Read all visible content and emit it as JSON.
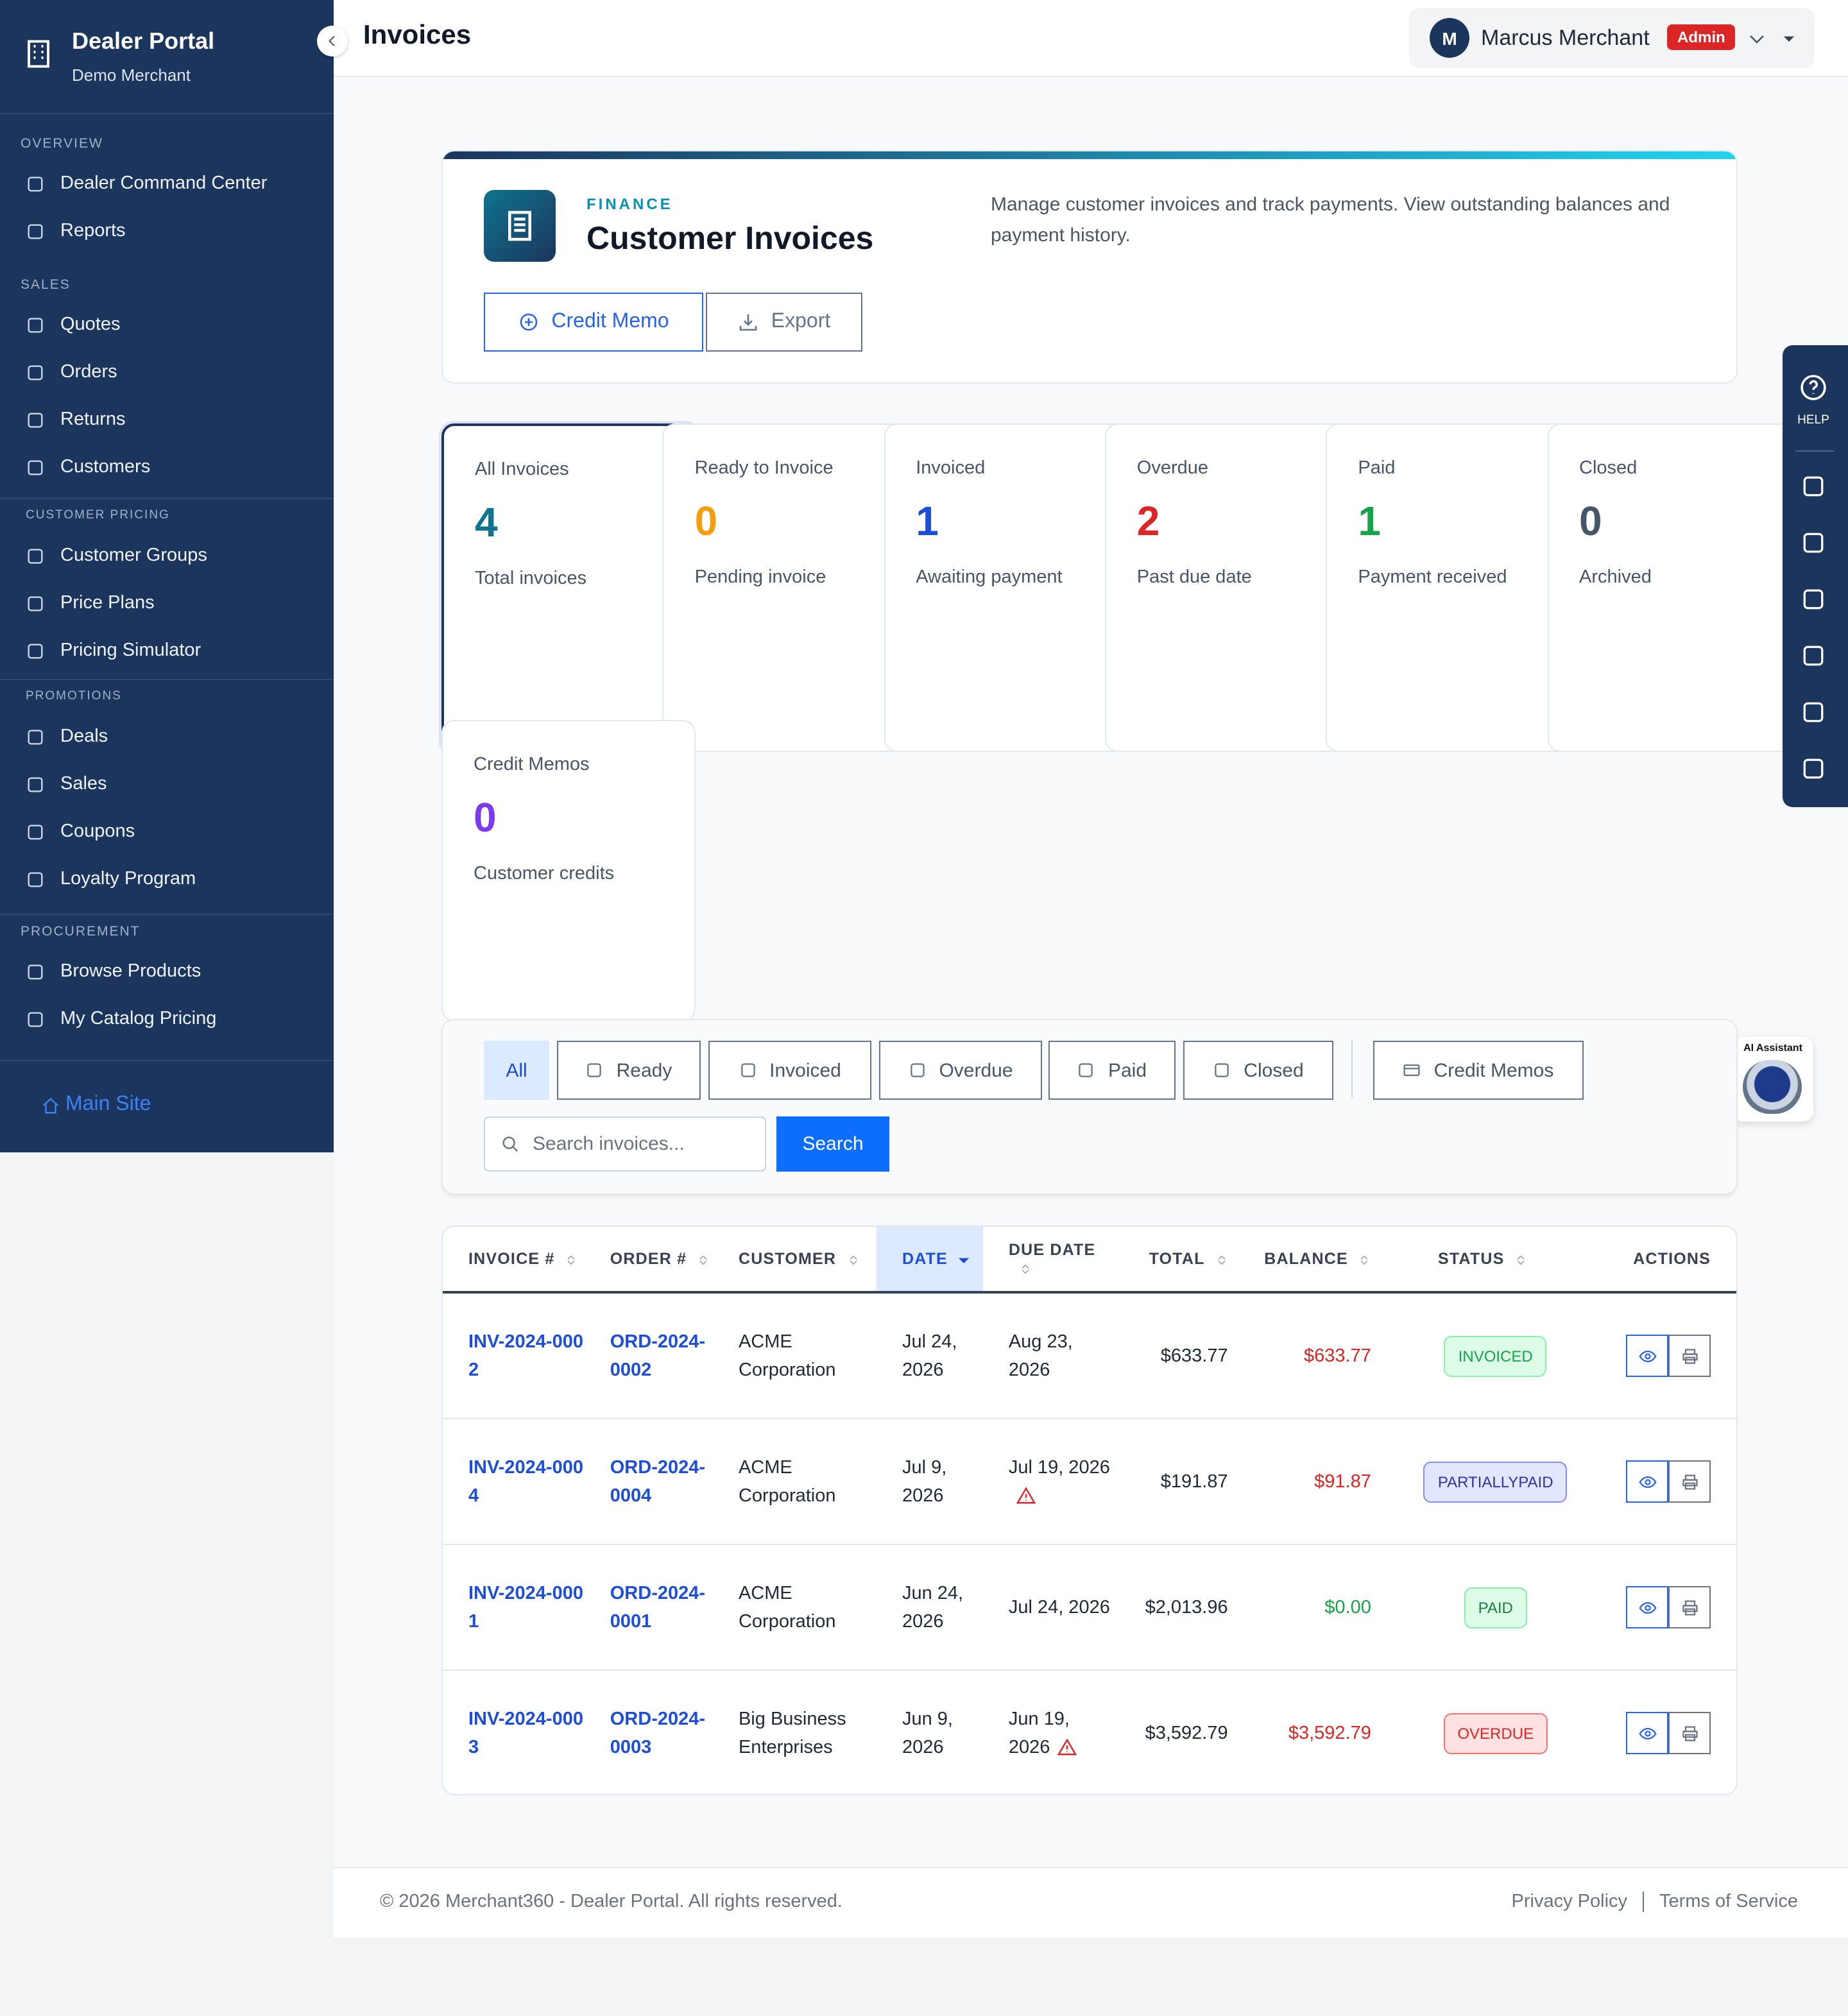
{
  "sidebar": {
    "brand": "Dealer Portal",
    "merchant": "Demo Merchant",
    "sections": [
      {
        "title": "OVERVIEW",
        "items": [
          "Dealer Command Center",
          "Reports"
        ]
      },
      {
        "title": "SALES",
        "items": [
          "Quotes",
          "Orders",
          "Returns",
          "Customers"
        ]
      },
      {
        "title": "CUSTOMER PRICING",
        "items": [
          "Customer Groups",
          "Price Plans",
          "Pricing Simulator"
        ]
      },
      {
        "title": "PROMOTIONS",
        "items": [
          "Deals",
          "Sales",
          "Coupons",
          "Loyalty Program"
        ]
      },
      {
        "title": "PROCUREMENT",
        "items": [
          "Browse Products",
          "My Catalog Pricing"
        ]
      }
    ],
    "footer_link": "Main Site"
  },
  "header": {
    "title": "Invoices",
    "user": {
      "initial": "M",
      "name": "Marcus Merchant",
      "role": "Admin"
    }
  },
  "hero": {
    "eyebrow": "FINANCE",
    "title": "Customer Invoices",
    "description": "Manage customer invoices and track payments. View outstanding balances and payment history.",
    "buttons": [
      "Credit Memo",
      "Export"
    ]
  },
  "stats": [
    {
      "label": "All Invoices",
      "value": 4,
      "caption": "Total invoices",
      "color": "#0e7490"
    },
    {
      "label": "Ready to Invoice",
      "value": 0,
      "caption": "Pending invoice",
      "color": "#f59e0b"
    },
    {
      "label": "Invoiced",
      "value": 1,
      "caption": "Awaiting payment",
      "color": "#1d4ed8"
    },
    {
      "label": "Overdue",
      "value": 2,
      "caption": "Past due date",
      "color": "#dc2626"
    },
    {
      "label": "Paid",
      "value": 1,
      "caption": "Payment received",
      "color": "#16a34a"
    },
    {
      "label": "Closed",
      "value": 0,
      "caption": "Archived",
      "color": "#475569"
    },
    {
      "label": "Credit Memos",
      "value": 0,
      "caption": "Customer credits",
      "color": "#7c3aed"
    }
  ],
  "right_rail": {
    "help": "HELP"
  },
  "assistant": {
    "label": "AI Assistant"
  },
  "filters": {
    "tabs": [
      "All",
      "Ready",
      "Invoiced",
      "Overdue",
      "Paid",
      "Closed"
    ],
    "credit_memos": "Credit Memos",
    "search_placeholder": "Search invoices...",
    "search_button": "Search"
  },
  "table": {
    "columns": [
      "INVOICE #",
      "ORDER #",
      "CUSTOMER",
      "DATE",
      "DUE DATE",
      "TOTAL",
      "BALANCE",
      "STATUS",
      "ACTIONS"
    ],
    "rows": [
      {
        "invoice": "INV-2024-0002",
        "order": "ORD-2024-0002",
        "customer": "ACME Corporation",
        "date": "Jul 24, 2026",
        "due_date": "Aug 23, 2026",
        "total": "$633.77",
        "balance": "$633.77",
        "balance_color": "#dc2626",
        "status": "INVOICED",
        "status_color": "#16a34a"
      },
      {
        "invoice": "INV-2024-0004",
        "order": "ORD-2024-0004",
        "customer": "ACME Corporation",
        "date": "Jul 9, 2026",
        "due_date": "Jul 19, 2026",
        "past_due": true,
        "total": "$191.87",
        "balance": "$91.87",
        "balance_color": "#dc2626",
        "status": "PARTIALLYPAID",
        "status_color": "#3730a3"
      },
      {
        "invoice": "INV-2024-0001",
        "order": "ORD-2024-0001",
        "customer": "ACME Corporation",
        "date": "Jun 24, 2026",
        "due_date": "Jul 24, 2026",
        "total": "$2,013.96",
        "balance": "$0.00",
        "balance_color": "#16a34a",
        "status": "PAID",
        "status_color": "#15803d"
      },
      {
        "invoice": "INV-2024-0003",
        "order": "ORD-2024-0003",
        "customer": "Big Business Enterprises",
        "date": "Jun 9, 2026",
        "due_date": "Jun 19, 2026",
        "past_due": true,
        "total": "$3,592.79",
        "balance": "$3,592.79",
        "balance_color": "#dc2626",
        "status": "OVERDUE",
        "status_color": "#dc2626"
      }
    ]
  },
  "footer": {
    "copyright": "© 2026 Merchant360 - Dealer Portal. All rights reserved.",
    "links": [
      "Privacy Policy",
      "Terms of Service"
    ]
  }
}
